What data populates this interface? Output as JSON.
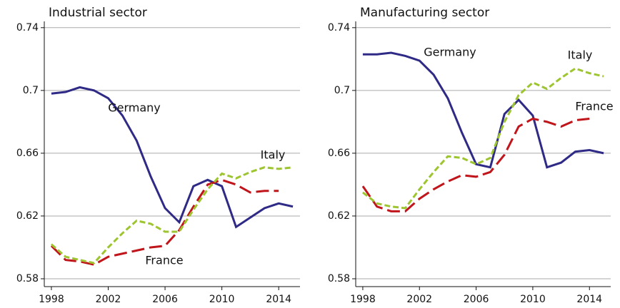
{
  "chart_data": [
    {
      "type": "line",
      "title": "Industrial sector",
      "x": [
        1998,
        1999,
        2000,
        2001,
        2002,
        2003,
        2004,
        2005,
        2006,
        2007,
        2008,
        2009,
        2010,
        2011,
        2012,
        2013,
        2014,
        2015
      ],
      "series": [
        {
          "name": "Germany",
          "color": "#2e2a86",
          "values": [
            0.698,
            0.699,
            0.702,
            0.7,
            0.695,
            0.684,
            0.668,
            0.645,
            0.625,
            0.616,
            0.639,
            0.643,
            0.639,
            0.613,
            0.619,
            0.625,
            0.628,
            0.626
          ]
        },
        {
          "name": "France",
          "color": "#c0161b",
          "values": [
            0.601,
            0.592,
            0.591,
            0.589,
            0.594,
            0.596,
            0.598,
            0.6,
            0.601,
            0.611,
            0.626,
            0.64,
            0.643,
            0.64,
            0.635,
            0.636,
            0.636,
            null
          ]
        },
        {
          "name": "Italy",
          "color": "#9dc52f",
          "values": [
            0.602,
            0.594,
            0.592,
            0.59,
            0.6,
            0.609,
            0.617,
            0.615,
            0.61,
            0.61,
            0.624,
            0.637,
            0.647,
            0.644,
            0.648,
            0.651,
            0.65,
            0.651
          ]
        }
      ],
      "xlim": [
        1997.5,
        2015.5
      ],
      "xticks": [
        1998,
        2002,
        2006,
        2010,
        2014
      ],
      "ylim": [
        0.575,
        0.744
      ],
      "yticks": [
        0.58,
        0.62,
        0.66,
        0.7,
        0.74
      ],
      "grid": true
    },
    {
      "type": "line",
      "title": "Manufacturing sector",
      "x": [
        1998,
        1999,
        2000,
        2001,
        2002,
        2003,
        2004,
        2005,
        2006,
        2007,
        2008,
        2009,
        2010,
        2011,
        2012,
        2013,
        2014,
        2015
      ],
      "series": [
        {
          "name": "Germany",
          "color": "#2e2a86",
          "values": [
            0.723,
            0.723,
            0.724,
            0.722,
            0.719,
            0.71,
            0.695,
            0.673,
            0.653,
            0.651,
            0.685,
            0.694,
            0.684,
            0.651,
            0.654,
            0.661,
            0.662,
            0.66
          ]
        },
        {
          "name": "France",
          "color": "#c0161b",
          "values": [
            0.639,
            0.626,
            0.623,
            0.623,
            0.631,
            0.637,
            0.642,
            0.646,
            0.645,
            0.648,
            0.659,
            0.677,
            0.682,
            0.68,
            0.677,
            0.681,
            0.682,
            null
          ]
        },
        {
          "name": "Italy",
          "color": "#9dc52f",
          "values": [
            0.635,
            0.628,
            0.626,
            0.625,
            0.637,
            0.648,
            0.658,
            0.657,
            0.653,
            0.657,
            0.68,
            0.697,
            0.705,
            0.701,
            0.708,
            0.714,
            0.711,
            0.709
          ]
        }
      ],
      "xlim": [
        1997.5,
        2015.5
      ],
      "xticks": [
        1998,
        2002,
        2006,
        2010,
        2014
      ],
      "ylim": [
        0.575,
        0.744
      ],
      "yticks": [
        0.58,
        0.62,
        0.66,
        0.7,
        0.74
      ],
      "grid": true
    }
  ]
}
